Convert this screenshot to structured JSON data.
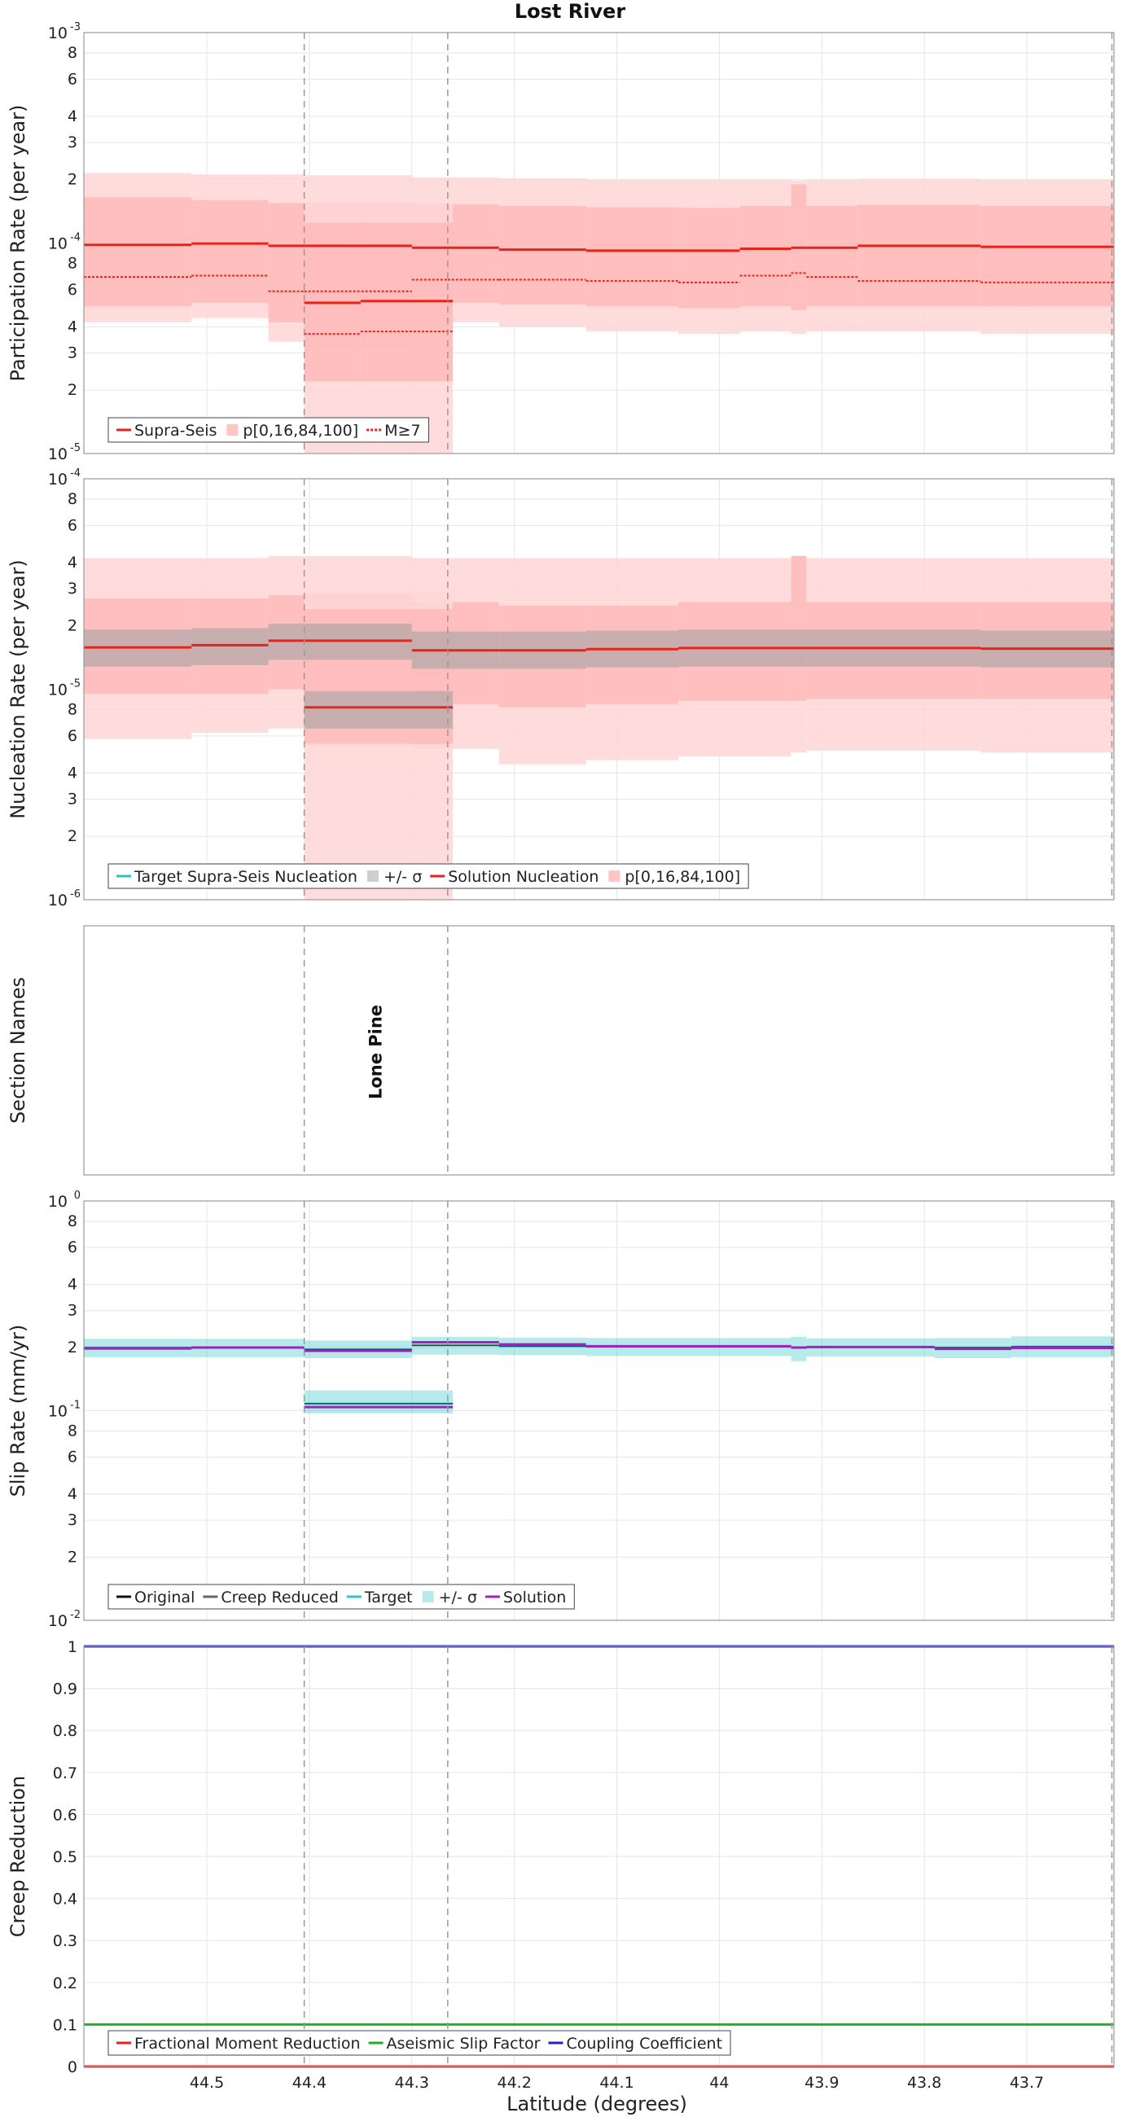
{
  "figure": {
    "title": "Lost River",
    "xlabel": "Latitude (degrees)",
    "xlim": [
      44.62,
      43.615
    ],
    "xticks": [
      44.5,
      44.4,
      44.3,
      44.2,
      44.1,
      44.0,
      43.9,
      43.8,
      43.7
    ],
    "xtick_labels": [
      "44.5",
      "44.4",
      "44.3",
      "44.2",
      "44.1",
      "44",
      "43.9",
      "43.8",
      "43.7"
    ],
    "section_boundaries": [
      44.405,
      44.265,
      43.617
    ]
  },
  "colors": {
    "red": "#e8231c",
    "pink_light": "#ffd6d6",
    "pink_mid": "#ffb5b5",
    "target_cyan": "#2ec4c6",
    "sigma_gray": "#9aa0a0",
    "solution_purple": "#a020c0",
    "green": "#22b022",
    "blue": "#2020c8",
    "grid": "#e6e6e6",
    "dashed": "#999999"
  },
  "chart_data": [
    {
      "type": "line",
      "panel": "participation",
      "ylabel": "Participation Rate (per year)",
      "yscale": "log",
      "ylim": [
        1e-05,
        0.001
      ],
      "y_decade_labels": [
        {
          "value": 0.001,
          "base": "10",
          "exp": "-3"
        },
        {
          "value": 0.0001,
          "base": "10",
          "exp": "-4"
        },
        {
          "value": 1e-05,
          "base": "10",
          "exp": "-5"
        }
      ],
      "y_minor_labels": [
        {
          "value": 0.0008,
          "label": "8"
        },
        {
          "value": 0.0006,
          "label": "6"
        },
        {
          "value": 0.0004,
          "label": "4"
        },
        {
          "value": 0.0003,
          "label": "3"
        },
        {
          "value": 0.0002,
          "label": "2"
        },
        {
          "value": 8e-05,
          "label": "8"
        },
        {
          "value": 6e-05,
          "label": "6"
        },
        {
          "value": 4e-05,
          "label": "4"
        },
        {
          "value": 3e-05,
          "label": "3"
        },
        {
          "value": 2e-05,
          "label": "2"
        }
      ],
      "segments": [
        {
          "x": [
            44.62,
            44.515
          ],
          "supra": 9.8e-05,
          "m7": 6.9e-05,
          "p0": 4.2e-05,
          "p16": 5e-05,
          "p84": 0.000165,
          "p100": 0.000215
        },
        {
          "x": [
            44.515,
            44.44
          ],
          "supra": 9.95e-05,
          "m7": 7e-05,
          "p0": 4.4e-05,
          "p16": 5.2e-05,
          "p84": 0.00016,
          "p100": 0.000212
        },
        {
          "x": [
            44.44,
            44.405
          ],
          "supra": 9.7e-05,
          "m7": 5.9e-05,
          "p0": 3.4e-05,
          "p16": 4.2e-05,
          "p84": 0.000155,
          "p100": 0.000212
        },
        {
          "x": [
            44.405,
            44.3
          ],
          "supra": 9.7e-05,
          "m7": 5.9e-05,
          "p0": 3.1e-05,
          "p16": 4.1e-05,
          "p84": 0.000155,
          "p100": 0.00021
        },
        {
          "x": [
            44.3,
            44.265
          ],
          "supra": 9.5e-05,
          "m7": 6.7e-05,
          "p0": 4.2e-05,
          "p16": 5.2e-05,
          "p84": 0.000153,
          "p100": 0.000205
        },
        {
          "x": [
            44.265,
            44.215
          ],
          "supra": 9.5e-05,
          "m7": 6.7e-05,
          "p0": 4.2e-05,
          "p16": 5.2e-05,
          "p84": 0.000153,
          "p100": 0.000205
        },
        {
          "x": [
            44.215,
            44.13
          ],
          "supra": 9.3e-05,
          "m7": 6.7e-05,
          "p0": 4e-05,
          "p16": 5.1e-05,
          "p84": 0.00015,
          "p100": 0.000203
        },
        {
          "x": [
            44.13,
            44.04
          ],
          "supra": 9.2e-05,
          "m7": 6.6e-05,
          "p0": 3.8e-05,
          "p16": 5e-05,
          "p84": 0.000148,
          "p100": 0.0002
        },
        {
          "x": [
            44.04,
            43.98
          ],
          "supra": 9.2e-05,
          "m7": 6.5e-05,
          "p0": 3.7e-05,
          "p16": 4.9e-05,
          "p84": 0.000147,
          "p100": 0.0002
        },
        {
          "x": [
            43.98,
            43.93
          ],
          "supra": 9.4e-05,
          "m7": 7e-05,
          "p0": 3.8e-05,
          "p16": 5e-05,
          "p84": 0.00015,
          "p100": 0.0002
        },
        {
          "x": [
            43.93,
            43.915
          ],
          "supra": 9.5e-05,
          "m7": 7.2e-05,
          "p0": 3.7e-05,
          "p16": 4.8e-05,
          "p84": 0.00019,
          "p100": 0.000198
        },
        {
          "x": [
            43.915,
            43.865
          ],
          "supra": 9.5e-05,
          "m7": 6.9e-05,
          "p0": 3.8e-05,
          "p16": 5e-05,
          "p84": 0.00015,
          "p100": 0.0002
        },
        {
          "x": [
            43.865,
            43.745
          ],
          "supra": 9.7e-05,
          "m7": 6.6e-05,
          "p0": 3.8e-05,
          "p16": 5e-05,
          "p84": 0.000152,
          "p100": 0.000202
        },
        {
          "x": [
            43.745,
            43.615
          ],
          "supra": 9.6e-05,
          "m7": 6.5e-05,
          "p0": 3.7e-05,
          "p16": 5e-05,
          "p84": 0.00015,
          "p100": 0.0002
        }
      ],
      "lone_pine_segments": [
        {
          "x": [
            44.405,
            44.35
          ],
          "supra": 5.2e-05,
          "m7": 3.7e-05,
          "p0": 1e-05,
          "p16": 2.2e-05,
          "p84": 0.000125,
          "p100": 0.000155
        },
        {
          "x": [
            44.35,
            44.26
          ],
          "supra": 5.3e-05,
          "m7": 3.8e-05,
          "p0": 1e-05,
          "p16": 2.2e-05,
          "p84": 0.000125,
          "p100": 0.000155
        }
      ],
      "legend": [
        "Supra-Seis",
        "p[0,16,84,100]",
        "M≥7"
      ]
    },
    {
      "type": "line",
      "panel": "nucleation",
      "ylabel": "Nucleation Rate (per year)",
      "yscale": "log",
      "ylim": [
        1e-06,
        0.0001
      ],
      "y_decade_labels": [
        {
          "value": 0.0001,
          "base": "10",
          "exp": "-4"
        },
        {
          "value": 1e-05,
          "base": "10",
          "exp": "-5"
        },
        {
          "value": 1e-06,
          "base": "10",
          "exp": "-6"
        }
      ],
      "y_minor_labels": [
        {
          "value": 8e-05,
          "label": "8"
        },
        {
          "value": 6e-05,
          "label": "6"
        },
        {
          "value": 4e-05,
          "label": "4"
        },
        {
          "value": 3e-05,
          "label": "3"
        },
        {
          "value": 2e-05,
          "label": "2"
        },
        {
          "value": 8e-06,
          "label": "8"
        },
        {
          "value": 6e-06,
          "label": "6"
        },
        {
          "value": 4e-06,
          "label": "4"
        },
        {
          "value": 3e-06,
          "label": "3"
        },
        {
          "value": 2e-06,
          "label": "2"
        }
      ],
      "segments": [
        {
          "x": [
            44.62,
            44.515
          ],
          "target": 1.58e-05,
          "sig_lo": 1.28e-05,
          "sig_hi": 1.92e-05,
          "sol": 1.58e-05,
          "p0": 5.8e-06,
          "p16": 9.5e-06,
          "p84": 2.7e-05,
          "p100": 4.2e-05
        },
        {
          "x": [
            44.515,
            44.44
          ],
          "target": 1.62e-05,
          "sig_lo": 1.3e-05,
          "sig_hi": 1.95e-05,
          "sol": 1.62e-05,
          "p0": 6.2e-06,
          "p16": 9.5e-06,
          "p84": 2.7e-05,
          "p100": 4.2e-05
        },
        {
          "x": [
            44.44,
            44.405
          ],
          "target": 1.7e-05,
          "sig_lo": 1.38e-05,
          "sig_hi": 2.05e-05,
          "sol": 1.7e-05,
          "p0": 6.5e-06,
          "p16": 1e-05,
          "p84": 2.8e-05,
          "p100": 4.3e-05
        },
        {
          "x": [
            44.405,
            44.3
          ],
          "target": 1.7e-05,
          "sig_lo": 1.38e-05,
          "sig_hi": 2.05e-05,
          "sol": 1.7e-05,
          "p0": 6.5e-06,
          "p16": 1e-05,
          "p84": 2.8e-05,
          "p100": 4.3e-05
        },
        {
          "x": [
            44.3,
            44.265
          ],
          "target": 1.53e-05,
          "sig_lo": 1.25e-05,
          "sig_hi": 1.88e-05,
          "sol": 1.53e-05,
          "p0": 5.2e-06,
          "p16": 8.5e-06,
          "p84": 2.6e-05,
          "p100": 4.2e-05
        },
        {
          "x": [
            44.265,
            44.215
          ],
          "target": 1.53e-05,
          "sig_lo": 1.25e-05,
          "sig_hi": 1.88e-05,
          "sol": 1.53e-05,
          "p0": 5.2e-06,
          "p16": 8.5e-06,
          "p84": 2.6e-05,
          "p100": 4.2e-05
        },
        {
          "x": [
            44.215,
            44.13
          ],
          "target": 1.53e-05,
          "sig_lo": 1.25e-05,
          "sig_hi": 1.88e-05,
          "sol": 1.53e-05,
          "p0": 4.4e-06,
          "p16": 8.2e-06,
          "p84": 2.5e-05,
          "p100": 4.2e-05
        },
        {
          "x": [
            44.13,
            44.04
          ],
          "target": 1.55e-05,
          "sig_lo": 1.27e-05,
          "sig_hi": 1.9e-05,
          "sol": 1.55e-05,
          "p0": 4.6e-06,
          "p16": 8.5e-06,
          "p84": 2.5e-05,
          "p100": 4.2e-05
        },
        {
          "x": [
            44.04,
            43.93
          ],
          "target": 1.57e-05,
          "sig_lo": 1.28e-05,
          "sig_hi": 1.92e-05,
          "sol": 1.57e-05,
          "p0": 4.8e-06,
          "p16": 8.8e-06,
          "p84": 2.6e-05,
          "p100": 4.2e-05
        },
        {
          "x": [
            43.93,
            43.915
          ],
          "target": 1.57e-05,
          "sig_lo": 1.28e-05,
          "sig_hi": 1.92e-05,
          "sol": 1.57e-05,
          "p0": 5e-06,
          "p16": 8.8e-06,
          "p84": 4.3e-05,
          "p100": 4.3e-05
        },
        {
          "x": [
            43.915,
            43.745
          ],
          "target": 1.57e-05,
          "sig_lo": 1.28e-05,
          "sig_hi": 1.92e-05,
          "sol": 1.57e-05,
          "p0": 5.1e-06,
          "p16": 9e-06,
          "p84": 2.6e-05,
          "p100": 4.2e-05
        },
        {
          "x": [
            43.745,
            43.615
          ],
          "target": 1.56e-05,
          "sig_lo": 1.27e-05,
          "sig_hi": 1.9e-05,
          "sol": 1.56e-05,
          "p0": 5e-06,
          "p16": 9e-06,
          "p84": 2.6e-05,
          "p100": 4.2e-05
        }
      ],
      "lone_pine_segments": [
        {
          "x": [
            44.405,
            44.26
          ],
          "target": 8.2e-06,
          "sig_lo": 6.5e-06,
          "sig_hi": 9.8e-06,
          "sol": 8.2e-06,
          "p0": 1e-06,
          "p16": 5.5e-06,
          "p84": 2.4e-05,
          "p100": 2.9e-05
        }
      ],
      "legend": [
        "Target Supra-Seis Nucleation",
        "+/- σ",
        "Solution Nucleation",
        "p[0,16,84,100]"
      ]
    },
    {
      "type": "table",
      "panel": "section-names",
      "ylabel": "Section Names",
      "names": [
        {
          "label": "Lone Pine",
          "x": 44.335
        }
      ]
    },
    {
      "type": "line",
      "panel": "slip-rate",
      "ylabel": "Slip Rate (mm/yr)",
      "yscale": "log",
      "ylim": [
        0.01,
        1.0
      ],
      "y_decade_labels": [
        {
          "value": 1.0,
          "base": "10",
          "exp": "0"
        },
        {
          "value": 0.1,
          "base": "10",
          "exp": "-1"
        },
        {
          "value": 0.01,
          "base": "10",
          "exp": "-2"
        }
      ],
      "y_minor_labels": [
        {
          "value": 0.8,
          "label": "8"
        },
        {
          "value": 0.6,
          "label": "6"
        },
        {
          "value": 0.4,
          "label": "4"
        },
        {
          "value": 0.3,
          "label": "3"
        },
        {
          "value": 0.2,
          "label": "2"
        },
        {
          "value": 0.08,
          "label": "8"
        },
        {
          "value": 0.06,
          "label": "6"
        },
        {
          "value": 0.04,
          "label": "4"
        },
        {
          "value": 0.03,
          "label": "3"
        },
        {
          "value": 0.02,
          "label": "2"
        }
      ],
      "segments": [
        {
          "x": [
            44.62,
            44.515
          ],
          "target": 0.2,
          "sig_lo": 0.18,
          "sig_hi": 0.22,
          "sol": 0.198
        },
        {
          "x": [
            44.515,
            44.405
          ],
          "target": 0.2,
          "sig_lo": 0.18,
          "sig_hi": 0.22,
          "sol": 0.2
        },
        {
          "x": [
            44.405,
            44.3
          ],
          "target": 0.196,
          "sig_lo": 0.178,
          "sig_hi": 0.216,
          "sol": 0.193
        },
        {
          "x": [
            44.3,
            44.215
          ],
          "target": 0.205,
          "sig_lo": 0.185,
          "sig_hi": 0.225,
          "sol": 0.212
        },
        {
          "x": [
            44.215,
            44.13
          ],
          "target": 0.203,
          "sig_lo": 0.184,
          "sig_hi": 0.223,
          "sol": 0.207
        },
        {
          "x": [
            44.13,
            43.93
          ],
          "target": 0.202,
          "sig_lo": 0.182,
          "sig_hi": 0.222,
          "sol": 0.203
        },
        {
          "x": [
            43.93,
            43.915
          ],
          "target": 0.2,
          "sig_lo": 0.172,
          "sig_hi": 0.225,
          "sol": 0.2
        },
        {
          "x": [
            43.915,
            43.79
          ],
          "target": 0.201,
          "sig_lo": 0.181,
          "sig_hi": 0.221,
          "sol": 0.201
        },
        {
          "x": [
            43.79,
            43.715
          ],
          "target": 0.2,
          "sig_lo": 0.178,
          "sig_hi": 0.222,
          "sol": 0.197
        },
        {
          "x": [
            43.715,
            43.615
          ],
          "target": 0.202,
          "sig_lo": 0.18,
          "sig_hi": 0.226,
          "sol": 0.199
        }
      ],
      "lone_pine_segments": [
        {
          "x": [
            44.405,
            44.26
          ],
          "target": 0.108,
          "sig_lo": 0.097,
          "sig_hi": 0.125,
          "sol": 0.104
        }
      ],
      "legend": [
        "Original",
        "Creep Reduced",
        "Target",
        "+/- σ",
        "Solution"
      ]
    },
    {
      "type": "line",
      "panel": "creep-reduction",
      "ylabel": "Creep Reduction",
      "yscale": "linear",
      "ylim": [
        0,
        1
      ],
      "yticks": [
        0,
        0.1,
        0.2,
        0.3,
        0.4,
        0.5,
        0.6,
        0.7,
        0.8,
        0.9,
        1.0
      ],
      "ytick_labels": [
        "0",
        "0.1",
        "0.2",
        "0.3",
        "0.4",
        "0.5",
        "0.6",
        "0.7",
        "0.8",
        "0.9",
        "1"
      ],
      "series": [
        {
          "name": "Fractional Moment Reduction",
          "value": 0.0
        },
        {
          "name": "Aseismic Slip Factor",
          "value": 0.1
        },
        {
          "name": "Coupling Coefficient",
          "value": 1.0
        }
      ],
      "legend": [
        "Fractional Moment Reduction",
        "Aseismic Slip Factor",
        "Coupling Coefficient"
      ]
    }
  ]
}
